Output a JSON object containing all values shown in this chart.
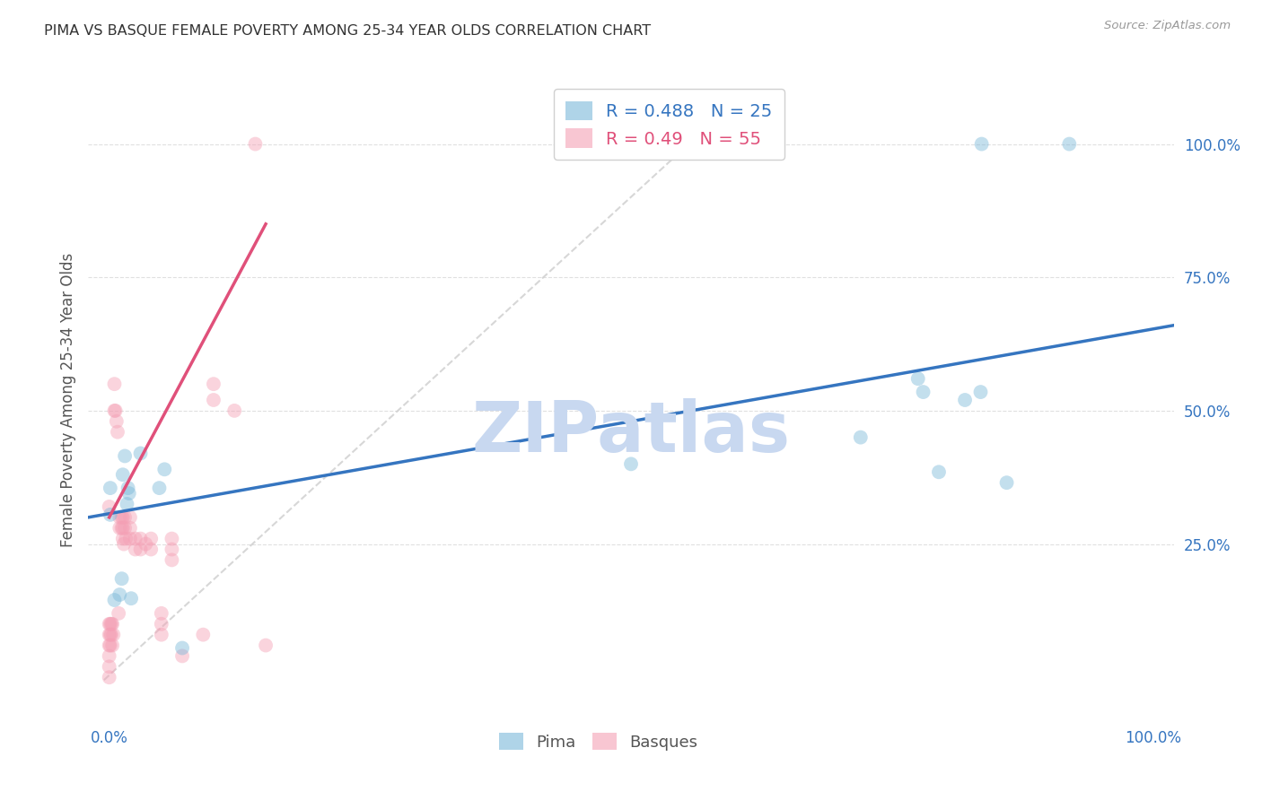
{
  "title": "PIMA VS BASQUE FEMALE POVERTY AMONG 25-34 YEAR OLDS CORRELATION CHART",
  "source": "Source: ZipAtlas.com",
  "ylabel": "Female Poverty Among 25-34 Year Olds",
  "pima_R": 0.488,
  "pima_N": 25,
  "basque_R": 0.49,
  "basque_N": 55,
  "pima_color": "#7ab8d9",
  "basque_color": "#f4a0b5",
  "pima_line_color": "#3575c0",
  "basque_line_color": "#e0507a",
  "ref_line_color": "#d0d0d0",
  "background_color": "#ffffff",
  "grid_color": "#e0e0e0",
  "watermark": "ZIPatlas",
  "watermark_color": "#c8d8f0",
  "pima_x": [
    0.001,
    0.001,
    0.005,
    0.01,
    0.012,
    0.013,
    0.015,
    0.017,
    0.018,
    0.019,
    0.021,
    0.03,
    0.048,
    0.053,
    0.07,
    0.5,
    0.72,
    0.775,
    0.78,
    0.795,
    0.82,
    0.835,
    0.836,
    0.86,
    0.92
  ],
  "pima_y": [
    0.305,
    0.355,
    0.145,
    0.155,
    0.185,
    0.38,
    0.415,
    0.325,
    0.355,
    0.345,
    0.148,
    0.42,
    0.355,
    0.39,
    0.055,
    0.4,
    0.45,
    0.56,
    0.535,
    0.385,
    0.52,
    0.535,
    1.0,
    0.365,
    1.0
  ],
  "basque_x": [
    0.0,
    0.0,
    0.0,
    0.0,
    0.0,
    0.001,
    0.001,
    0.001,
    0.002,
    0.002,
    0.003,
    0.003,
    0.004,
    0.005,
    0.005,
    0.006,
    0.007,
    0.008,
    0.009,
    0.01,
    0.01,
    0.012,
    0.012,
    0.013,
    0.013,
    0.013,
    0.014,
    0.015,
    0.015,
    0.016,
    0.02,
    0.02,
    0.02,
    0.025,
    0.025,
    0.03,
    0.03,
    0.035,
    0.04,
    0.04,
    0.05,
    0.05,
    0.05,
    0.06,
    0.06,
    0.06,
    0.07,
    0.09,
    0.1,
    0.1,
    0.12,
    0.14,
    0.15,
    0.0,
    0.0
  ],
  "basque_y": [
    0.32,
    0.1,
    0.08,
    0.06,
    0.04,
    0.1,
    0.08,
    0.06,
    0.1,
    0.08,
    0.1,
    0.06,
    0.08,
    0.55,
    0.5,
    0.5,
    0.48,
    0.46,
    0.12,
    0.3,
    0.28,
    0.3,
    0.28,
    0.3,
    0.28,
    0.26,
    0.25,
    0.3,
    0.28,
    0.26,
    0.3,
    0.28,
    0.26,
    0.26,
    0.24,
    0.26,
    0.24,
    0.25,
    0.26,
    0.24,
    0.12,
    0.1,
    0.08,
    0.26,
    0.24,
    0.22,
    0.04,
    0.08,
    0.55,
    0.52,
    0.5,
    1.0,
    0.06,
    0.02,
    0.0
  ],
  "xlim": [
    -0.02,
    1.02
  ],
  "ylim": [
    -0.08,
    1.12
  ],
  "xticks": [
    0.0,
    1.0
  ],
  "yticks": [
    0.25,
    0.5,
    0.75,
    1.0
  ],
  "xtick_labels_pos": [
    0.0,
    1.0
  ],
  "xtick_labels": [
    "0.0%",
    "100.0%"
  ],
  "ytick_labels": [
    "25.0%",
    "50.0%",
    "75.0%",
    "100.0%"
  ],
  "marker_size": 130,
  "marker_alpha": 0.45,
  "pima_line_x": [
    -0.02,
    1.02
  ],
  "pima_line_y": [
    0.3,
    0.66
  ],
  "basque_line_x": [
    0.0,
    0.15
  ],
  "basque_line_y": [
    0.3,
    0.85
  ],
  "ref_line_x1": -0.005,
  "ref_line_x2": 0.6,
  "ref_line_y1": -0.005,
  "ref_line_y2": 1.08
}
